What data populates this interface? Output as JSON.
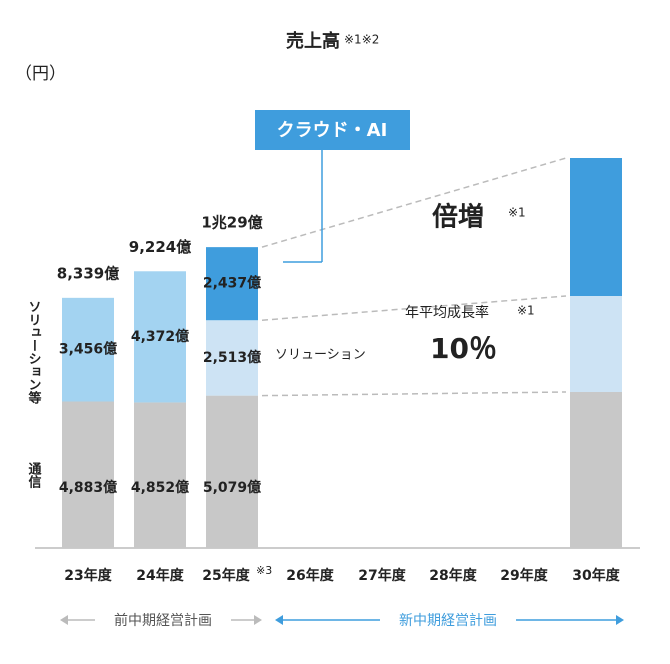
{
  "chart_data": {
    "type": "stacked-bar",
    "title": "売上高",
    "title_note": "※1※2",
    "unit": "（円）",
    "categories": [
      "23年度",
      "24年度",
      "25年度",
      "26年度",
      "27年度",
      "28年度",
      "29年度",
      "30年度"
    ],
    "category_notes": [
      null,
      null,
      "※3",
      null,
      null,
      null,
      null,
      null
    ],
    "series": [
      {
        "name": "通信",
        "color": "#c8c8c8",
        "values": [
          4883,
          4852,
          5079,
          null,
          null,
          null,
          null,
          5200
        ],
        "value_labels": [
          "4,883億",
          "4,852億",
          "5,079億",
          null,
          null,
          null,
          null,
          null
        ]
      },
      {
        "name": "ソリューション等",
        "color": "#a3d3f1",
        "colors": [
          "#a3d3f1",
          "#a3d3f1",
          "#cde3f4",
          null,
          null,
          null,
          null,
          "#cde3f4"
        ],
        "values": [
          3456,
          4372,
          2513,
          null,
          null,
          null,
          null,
          3200
        ],
        "value_labels": [
          "3,456億",
          "4,372億",
          "2,513億",
          null,
          null,
          null,
          null,
          null
        ]
      },
      {
        "name": "クラウド・AI",
        "color": "#3f9ddd",
        "values": [
          null,
          null,
          2437,
          null,
          null,
          null,
          null,
          4600
        ],
        "value_labels": [
          null,
          null,
          "2,437億",
          null,
          null,
          null,
          null,
          null
        ]
      }
    ],
    "totals": {
      "values": [
        8339,
        9224,
        10029
      ],
      "value_labels": [
        "8,339億",
        "9,224億",
        "1兆29億"
      ]
    },
    "ylim": [
      0,
      14500
    ],
    "annotations": {
      "solution": "ソリューション",
      "doubled": "倍増",
      "doubled_note": "※1",
      "cagr_label": "年平均成長率",
      "cagr_note": "※1",
      "cagr_value": "10％"
    },
    "periods": [
      "前中期経営計画",
      "新中期経営計画"
    ]
  }
}
